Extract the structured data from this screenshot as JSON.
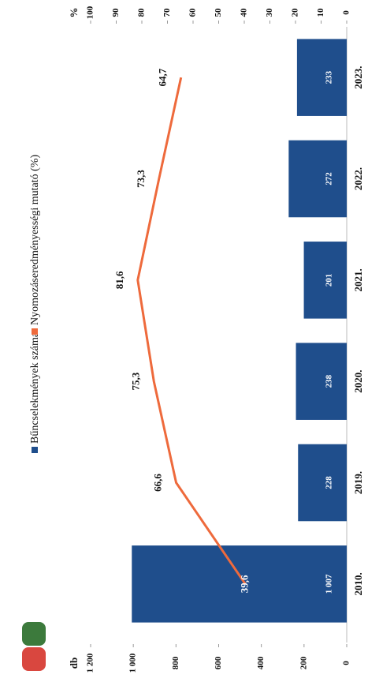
{
  "chart_data": {
    "type": "bar",
    "categories": [
      "2010.",
      "2019.",
      "2020.",
      "2021.",
      "2022.",
      "2023."
    ],
    "y_label": "db",
    "y2_label": "%",
    "series": [
      {
        "name": "Bűncselekmények száma",
        "type": "bar",
        "color": "#1f4e8c",
        "values": [
          1007,
          228,
          238,
          201,
          272,
          233
        ],
        "value_labels": [
          "1 007",
          "228",
          "238",
          "201",
          "272",
          "233"
        ]
      },
      {
        "name": "Nyomozáseredményességi mutató (%)",
        "type": "line",
        "axis": "y2",
        "color": "#ee6a3c",
        "values": [
          39.6,
          66.6,
          75.3,
          81.6,
          73.3,
          64.7
        ],
        "value_labels": [
          "39,6",
          "66,6",
          "75,3",
          "81,6",
          "73,3",
          "64,7"
        ]
      }
    ],
    "ylim": [
      0,
      1200
    ],
    "yticks": [
      0,
      200,
      400,
      600,
      800,
      {
        "value": 1000,
        "label": "1 000"
      },
      {
        "value": 1200,
        "label": "1 200"
      }
    ],
    "y2lim": [
      0,
      100
    ],
    "y2ticks": [
      0,
      10,
      20,
      30,
      40,
      50,
      60,
      70,
      80,
      90,
      100
    ],
    "legend": "top"
  }
}
